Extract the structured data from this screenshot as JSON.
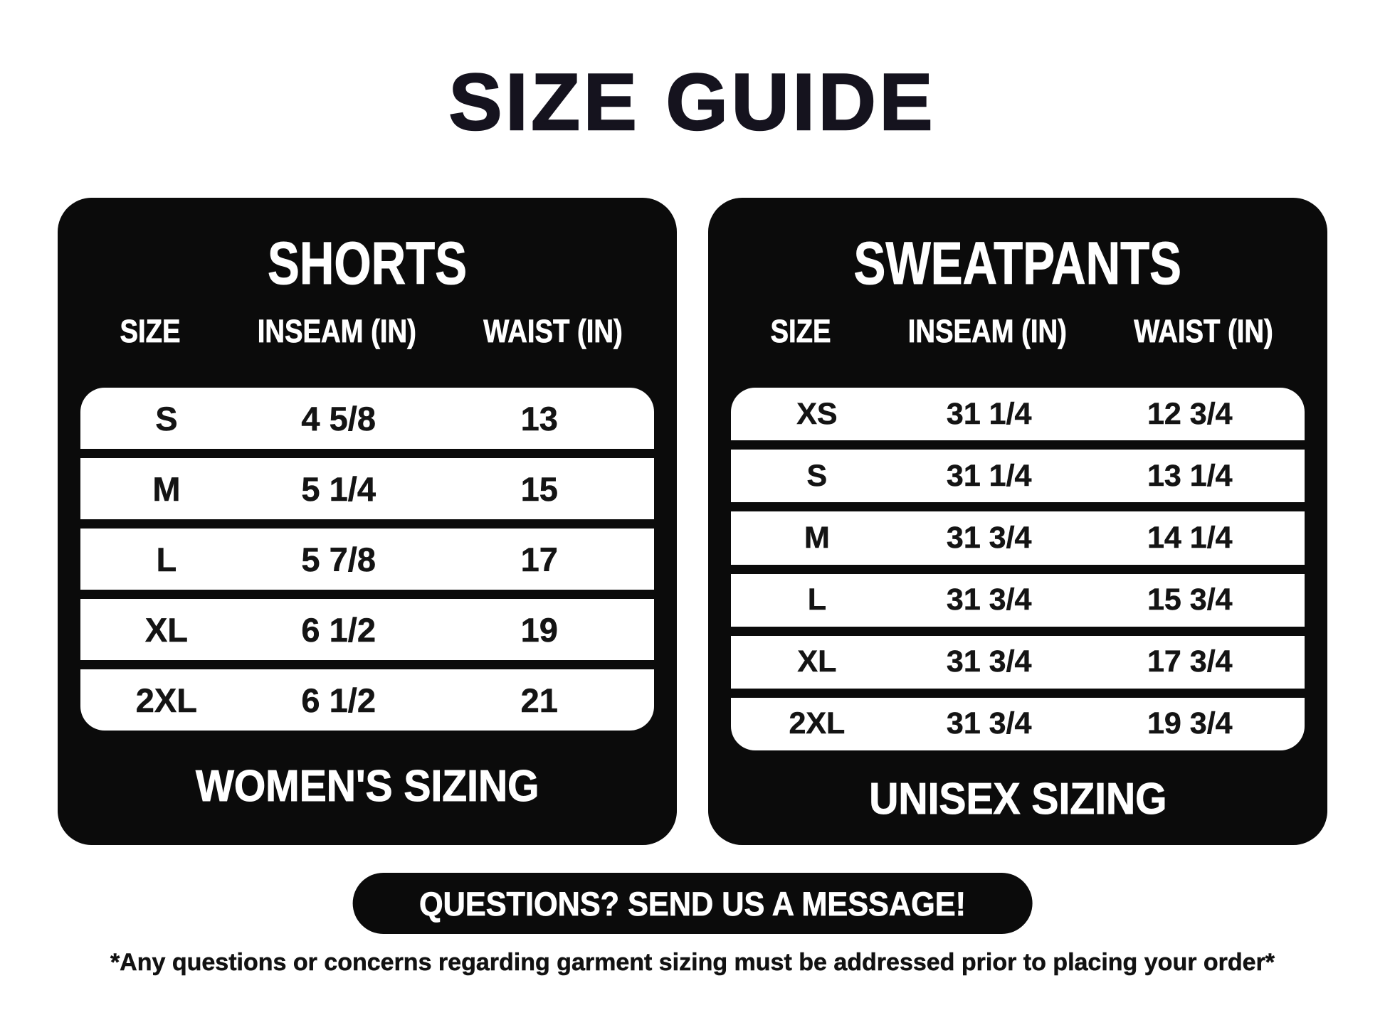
{
  "page": {
    "title": "SIZE GUIDE",
    "cta_label": "QUESTIONS? SEND US A MESSAGE!",
    "footnote": "*Any questions or concerns regarding garment sizing must be addressed prior to placing your order*"
  },
  "colors": {
    "page_background": "#ffffff",
    "panel_background": "#0b0b0b",
    "text_on_dark": "#ffffff",
    "text_dark": "#141414"
  },
  "tables": [
    {
      "title": "SHORTS",
      "columns": [
        "SIZE",
        "INSEAM (IN)",
        "WAIST (IN)"
      ],
      "rows": [
        [
          "S",
          "4 5/8",
          "13"
        ],
        [
          "M",
          "5 1/4",
          "15"
        ],
        [
          "L",
          "5 7/8",
          "17"
        ],
        [
          "XL",
          "6 1/2",
          "19"
        ],
        [
          "2XL",
          "6 1/2",
          "21"
        ]
      ],
      "footer": "WOMEN'S SIZING"
    },
    {
      "title": "SWEATPANTS",
      "columns": [
        "SIZE",
        "INSEAM (IN)",
        "WAIST (IN)"
      ],
      "rows": [
        [
          "XS",
          "31 1/4",
          "12 3/4"
        ],
        [
          "S",
          "31 1/4",
          "13 1/4"
        ],
        [
          "M",
          "31 3/4",
          "14 1/4"
        ],
        [
          "L",
          "31 3/4",
          "15 3/4"
        ],
        [
          "XL",
          "31 3/4",
          "17 3/4"
        ],
        [
          "2XL",
          "31 3/4",
          "19 3/4"
        ]
      ],
      "footer": "UNISEX SIZING"
    }
  ]
}
